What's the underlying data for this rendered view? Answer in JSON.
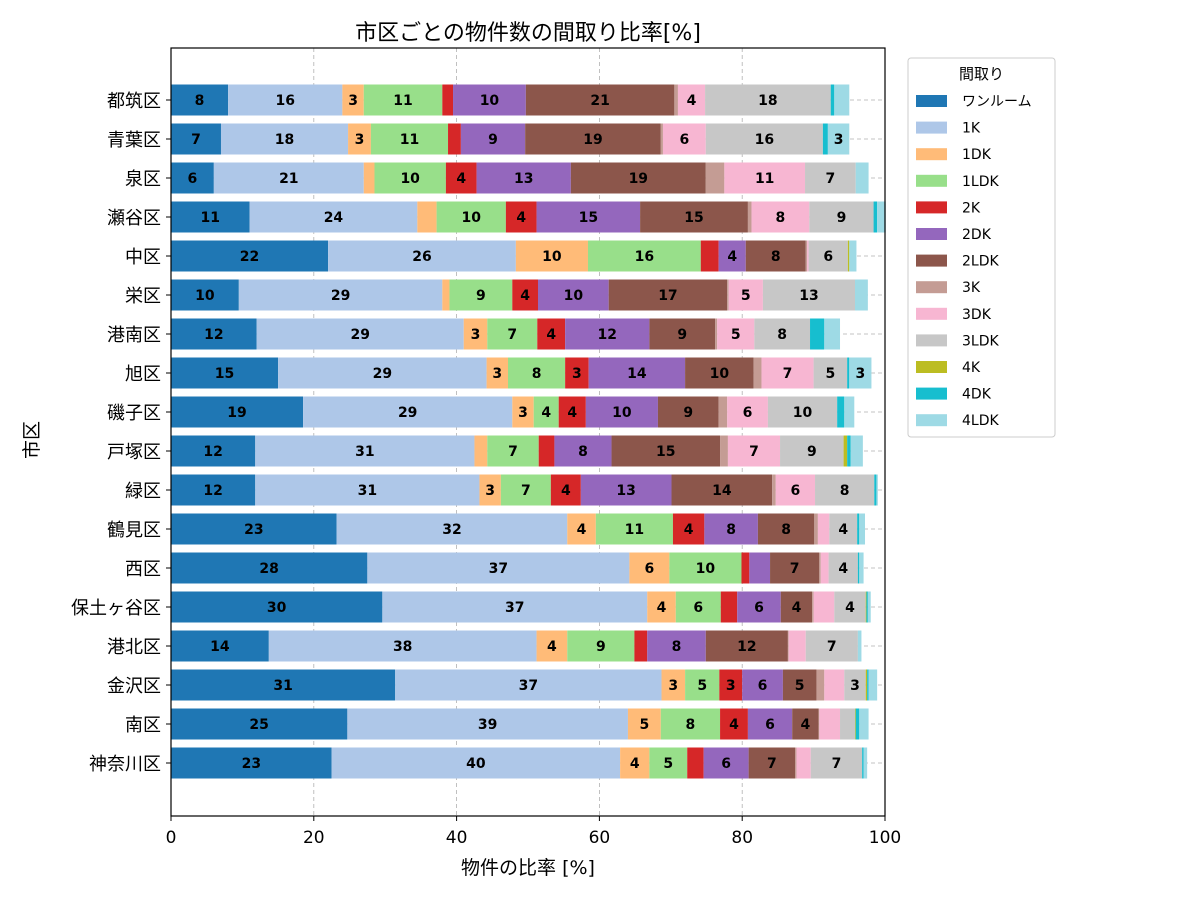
{
  "chart_data": {
    "type": "bar",
    "orientation": "horizontal",
    "stacked": true,
    "title": "市区ごとの物件数の間取り比率[%]",
    "xlabel": "物件の比率 [%]",
    "ylabel": "市区",
    "xlim": [
      0,
      100
    ],
    "xticks": [
      0,
      20,
      40,
      60,
      80,
      100
    ],
    "grid": true,
    "legend": {
      "title": "間取り",
      "placement": "outside-right-top"
    },
    "categories": [
      "都筑区",
      "青葉区",
      "泉区",
      "瀬谷区",
      "中区",
      "栄区",
      "港南区",
      "旭区",
      "磯子区",
      "戸塚区",
      "緑区",
      "鶴見区",
      "西区",
      "保土ヶ谷区",
      "港北区",
      "金沢区",
      "南区",
      "神奈川区"
    ],
    "series": [
      {
        "name": "ワンルーム",
        "color": "#1f77b4",
        "values": [
          8,
          7,
          6,
          11,
          22,
          9.5,
          12,
          15,
          18.5,
          11.8,
          11.8,
          23.2,
          27.5,
          29.6,
          13.7,
          31.4,
          24.7,
          22.5
        ]
      },
      {
        "name": "1K",
        "color": "#aec7e8",
        "values": [
          16,
          17.8,
          21,
          23.5,
          26.3,
          28.5,
          29,
          29.2,
          29.3,
          30.7,
          31.4,
          32.3,
          36.7,
          37.1,
          37.5,
          37.3,
          39.3,
          40.4
        ]
      },
      {
        "name": "1DK",
        "color": "#ffbb78",
        "values": [
          3,
          3.2,
          1.5,
          2.7,
          10.1,
          1,
          3.3,
          3,
          3,
          1.8,
          3,
          4,
          5.6,
          4,
          4.3,
          3.3,
          4.6,
          4.1
        ]
      },
      {
        "name": "1LDK",
        "color": "#98df8a",
        "values": [
          11,
          10.8,
          10,
          9.7,
          15.8,
          8.8,
          7,
          8,
          3.5,
          7.2,
          7,
          10.8,
          10.1,
          6.3,
          9.4,
          4.8,
          8.3,
          5.3
        ]
      },
      {
        "name": "2K",
        "color": "#d62728",
        "values": [
          1.5,
          1.8,
          4.3,
          4.3,
          2.5,
          3.6,
          3.9,
          3.3,
          3.8,
          2.2,
          4.2,
          4.4,
          1.1,
          2.3,
          1.8,
          3.2,
          3.9,
          2.3
        ]
      },
      {
        "name": "2DK",
        "color": "#9467bd",
        "values": [
          10.2,
          9,
          13.2,
          14.5,
          3.8,
          9.9,
          11.8,
          13.5,
          10.1,
          8,
          12.7,
          7.5,
          2.9,
          6.1,
          8.2,
          5.7,
          6.2,
          6.3
        ]
      },
      {
        "name": "2LDK",
        "color": "#8c564b",
        "values": [
          20.8,
          19,
          18.9,
          15.1,
          8.4,
          16.6,
          9.2,
          9.6,
          8.5,
          15.2,
          14.1,
          7.9,
          6.9,
          4.4,
          11.5,
          4.7,
          3.7,
          6.5
        ]
      },
      {
        "name": "3K",
        "color": "#c49c94",
        "values": [
          0.5,
          0.3,
          2.6,
          0.5,
          0.2,
          0.2,
          0.3,
          1.1,
          1.2,
          1.1,
          0.5,
          0.5,
          0.2,
          0.2,
          0.1,
          1.1,
          0.1,
          0.2
        ]
      },
      {
        "name": "3DK",
        "color": "#f7b6d2",
        "values": [
          3.8,
          6,
          11.3,
          8.1,
          0.2,
          4.8,
          5.2,
          7.3,
          5.7,
          7.3,
          5.5,
          1.6,
          1.1,
          2.9,
          2.4,
          2.8,
          2.9,
          2
        ]
      },
      {
        "name": "3LDK",
        "color": "#c7c7c7",
        "values": [
          17.6,
          16.4,
          7.1,
          9,
          5.5,
          12.9,
          7.8,
          4.7,
          9.7,
          8.9,
          8.3,
          3.9,
          4.1,
          4.4,
          7.3,
          3,
          2.1,
          7.2
        ]
      },
      {
        "name": "4K",
        "color": "#bcbd22",
        "values": [
          0,
          0,
          0,
          0,
          0.2,
          0,
          0,
          0,
          0,
          0.5,
          0,
          0,
          0,
          0.1,
          0,
          0.2,
          0.1,
          0
        ]
      },
      {
        "name": "4DK",
        "color": "#17becf",
        "values": [
          0.5,
          0.7,
          0,
          0.5,
          0,
          0,
          2,
          0.3,
          1,
          0.5,
          0.3,
          0.3,
          0.2,
          0.2,
          0,
          0.2,
          0.5,
          0.2
        ]
      },
      {
        "name": "4LDK",
        "color": "#9edae5",
        "values": [
          2.1,
          3,
          1.8,
          1.2,
          1,
          1.8,
          2.2,
          3.1,
          1.4,
          1.7,
          0.2,
          0.8,
          0.6,
          0.4,
          0.5,
          1.2,
          1.3,
          0.5
        ]
      }
    ]
  }
}
